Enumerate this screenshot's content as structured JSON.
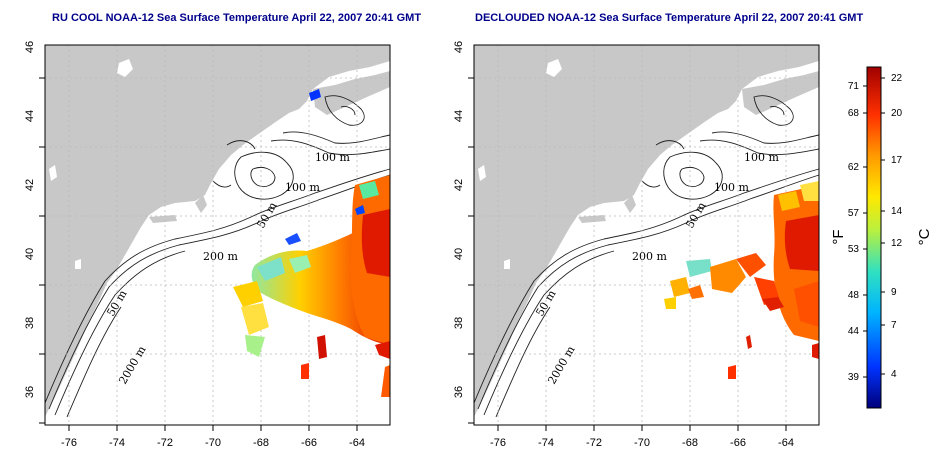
{
  "maps": [
    {
      "title": "RU COOL NOAA-12 Sea Surface Temperature April 22, 2007 20:41 GMT"
    },
    {
      "title": "DECLOUDED NOAA-12 Sea Surface Temperature April 22, 2007 20:41 GMT"
    }
  ],
  "axes": {
    "lon_ticks": [
      "-76",
      "-74",
      "-72",
      "-70",
      "-68",
      "-66",
      "-64"
    ],
    "lat_ticks": [
      "46",
      "44",
      "42",
      "40",
      "38",
      "36"
    ],
    "lon_range": [
      -77.2,
      -62.8
    ],
    "lat_range": [
      35,
      46
    ]
  },
  "isobaths": [
    "100 m",
    "100 m",
    "50 m",
    "200 m",
    "50 m",
    "2000 m"
  ],
  "colorbar": {
    "fahrenheit_ticks": [
      "71",
      "68",
      "62",
      "57",
      "53",
      "48",
      "44",
      "39"
    ],
    "celsius_ticks": [
      "22",
      "20",
      "17",
      "14",
      "12",
      "9",
      "7",
      "4"
    ],
    "fahrenheit_unit": "°F",
    "celsius_unit": "°C",
    "range_celsius": [
      2,
      23
    ]
  },
  "colors": {
    "land": "#c8c8c8",
    "ocean": "#ffffff",
    "contour": "#222222",
    "grid": "#bbbbbb",
    "title": "#00008b"
  }
}
